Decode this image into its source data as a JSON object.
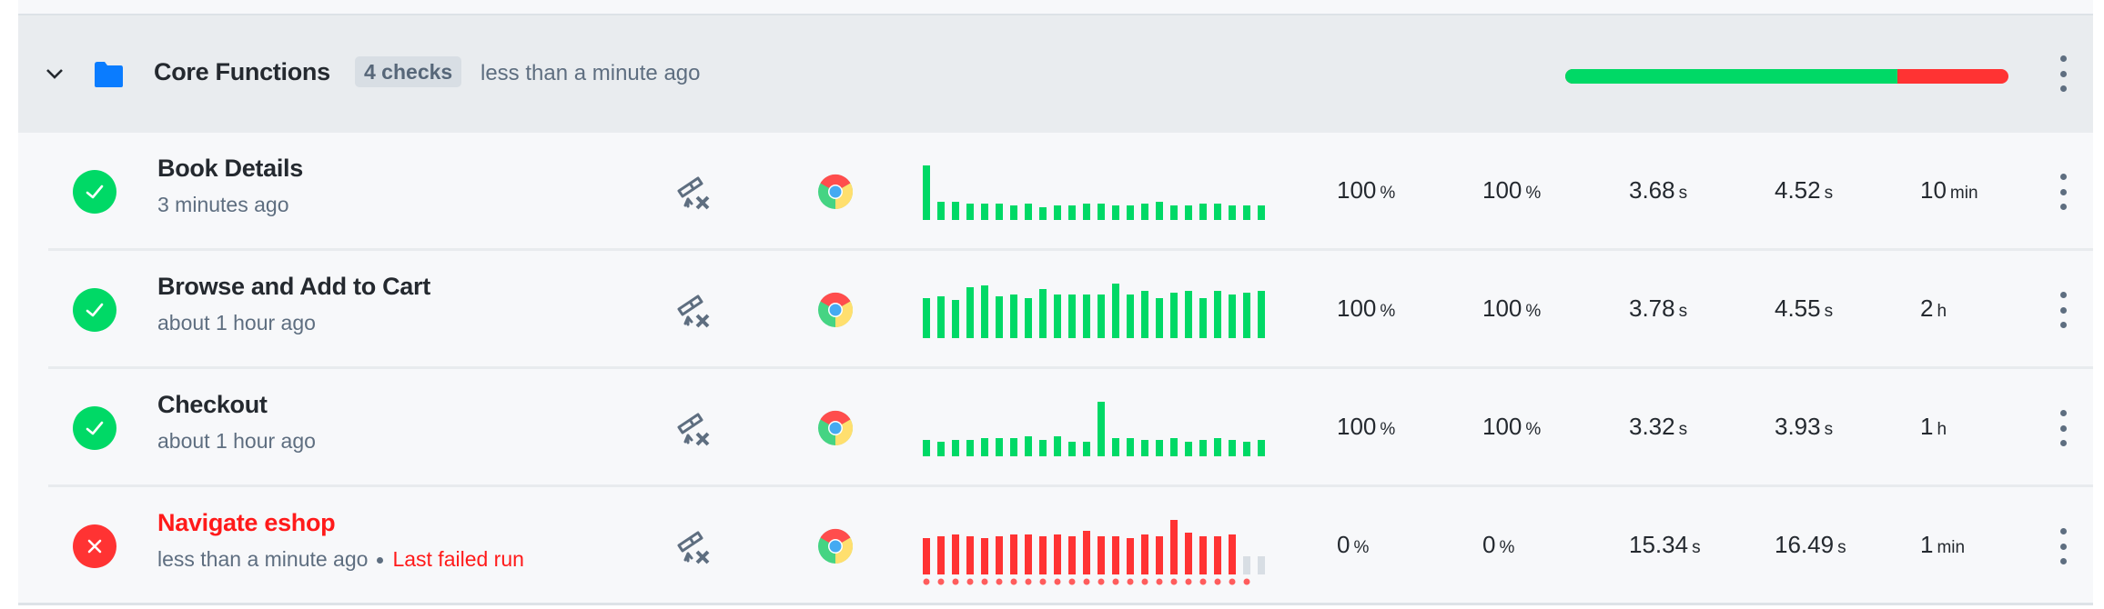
{
  "group": {
    "title": "Core Functions",
    "badge": "4 checks",
    "time": "less than a minute ago",
    "progress": {
      "passing_fraction": 0.75,
      "pass_color": "#00d966",
      "fail_color": "#ff3333"
    },
    "icons": {
      "chevron": "chevron-down-icon",
      "folder": "folder-icon",
      "more": "kebab-menu-icon"
    }
  },
  "colors": {
    "pass": "#00d966",
    "fail": "#ff3333",
    "pending": "#d8dee4",
    "folder": "#0a7cff"
  },
  "checks": [
    {
      "name": "Book Details",
      "status": "passing",
      "time": "3 minutes ago",
      "extra": "",
      "metrics": [
        {
          "v": "100",
          "u": "%"
        },
        {
          "v": "100",
          "u": "%"
        },
        {
          "v": "3.68",
          "u": "s"
        },
        {
          "v": "4.52",
          "u": "s"
        },
        {
          "v": "10",
          "u": "min"
        }
      ],
      "sparkline": {
        "values": [
          60,
          20,
          20,
          18,
          18,
          18,
          16,
          18,
          14,
          16,
          16,
          18,
          18,
          16,
          16,
          18,
          20,
          16,
          16,
          18,
          18,
          16,
          16,
          16
        ],
        "results": "pass"
      }
    },
    {
      "name": "Browse and Add to Cart",
      "status": "passing",
      "time": "about 1 hour ago",
      "extra": "",
      "metrics": [
        {
          "v": "100",
          "u": "%"
        },
        {
          "v": "100",
          "u": "%"
        },
        {
          "v": "3.78",
          "u": "s"
        },
        {
          "v": "4.55",
          "u": "s"
        },
        {
          "v": "2",
          "u": "h"
        }
      ],
      "sparkline": {
        "values": [
          44,
          46,
          42,
          56,
          58,
          46,
          48,
          44,
          54,
          48,
          48,
          48,
          48,
          60,
          48,
          52,
          44,
          50,
          52,
          44,
          52,
          48,
          50,
          52
        ],
        "results": "pass"
      }
    },
    {
      "name": "Checkout",
      "status": "passing",
      "time": "about 1 hour ago",
      "extra": "",
      "metrics": [
        {
          "v": "100",
          "u": "%"
        },
        {
          "v": "100",
          "u": "%"
        },
        {
          "v": "3.32",
          "u": "s"
        },
        {
          "v": "3.93",
          "u": "s"
        },
        {
          "v": "1",
          "u": "h"
        }
      ],
      "sparkline": {
        "values": [
          18,
          16,
          18,
          18,
          20,
          20,
          20,
          22,
          18,
          22,
          16,
          16,
          60,
          20,
          20,
          18,
          18,
          20,
          16,
          18,
          20,
          18,
          16,
          18
        ],
        "results": "pass"
      }
    },
    {
      "name": "Navigate eshop",
      "status": "failing",
      "time": "less than a minute ago",
      "extra": "Last failed run",
      "metrics": [
        {
          "v": "0",
          "u": "%"
        },
        {
          "v": "0",
          "u": "%"
        },
        {
          "v": "15.34",
          "u": "s"
        },
        {
          "v": "16.49",
          "u": "s"
        },
        {
          "v": "1",
          "u": "min"
        }
      ],
      "sparkline": {
        "values": [
          40,
          42,
          44,
          42,
          40,
          42,
          44,
          44,
          42,
          44,
          42,
          48,
          42,
          42,
          40,
          44,
          42,
          60,
          46,
          42,
          42,
          44,
          20,
          20
        ],
        "results": "fail",
        "pending_from": 22,
        "dots": 23
      }
    }
  ]
}
